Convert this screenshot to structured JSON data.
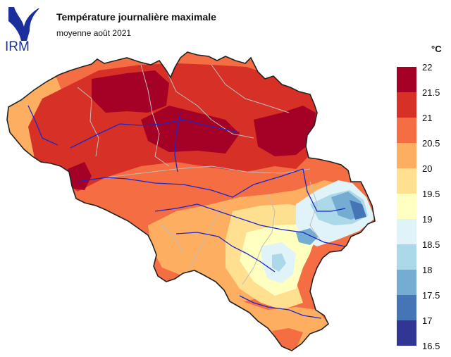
{
  "logo": {
    "text": "IRM",
    "color": "#1a2f9c"
  },
  "title": "Température journalière maximale",
  "subtitle": "moyenne août 2021",
  "legend": {
    "unit": "°C",
    "ticks": [
      "22",
      "21.5",
      "21",
      "20.5",
      "20",
      "19.5",
      "19",
      "18.5",
      "18",
      "17.5",
      "17",
      "16.5"
    ],
    "classes": [
      {
        "range": "21.5-22",
        "color": "#a50026"
      },
      {
        "range": "21-21.5",
        "color": "#d73027"
      },
      {
        "range": "20.5-21",
        "color": "#f46d43"
      },
      {
        "range": "20-20.5",
        "color": "#fdae61"
      },
      {
        "range": "19.5-20",
        "color": "#fee090"
      },
      {
        "range": "19-19.5",
        "color": "#ffffbf"
      },
      {
        "range": "18.5-19",
        "color": "#e0f3f8"
      },
      {
        "range": "18-18.5",
        "color": "#abd9e9"
      },
      {
        "range": "17.5-18",
        "color": "#74add1"
      },
      {
        "range": "17-17.5",
        "color": "#4575b4"
      },
      {
        "range": "16.5-17",
        "color": "#313695"
      }
    ]
  }
}
